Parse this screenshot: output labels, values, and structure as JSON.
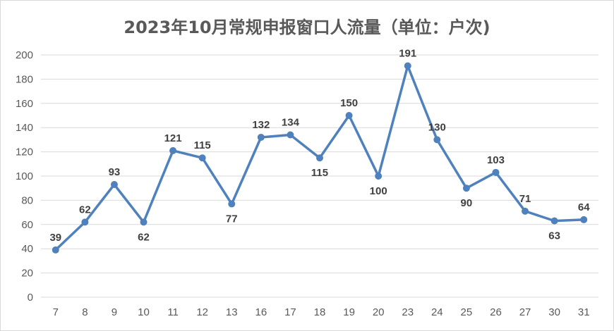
{
  "chart_data": {
    "type": "line",
    "title": "2023年10月常规申报窗口人流量（单位：户次)",
    "categories": [
      "7",
      "8",
      "9",
      "10",
      "11",
      "12",
      "13",
      "16",
      "17",
      "18",
      "19",
      "20",
      "23",
      "24",
      "25",
      "26",
      "27",
      "30",
      "31"
    ],
    "series": [
      {
        "values": [
          39,
          62,
          93,
          62,
          121,
          115,
          77,
          132,
          134,
          115,
          150,
          100,
          191,
          130,
          90,
          103,
          71,
          63,
          64
        ]
      }
    ],
    "ylim": [
      0,
      200
    ],
    "yticks": [
      0,
      20,
      40,
      60,
      80,
      100,
      120,
      140,
      160,
      180,
      200
    ],
    "grid": true,
    "data_labels": true,
    "colors": {
      "line": "#4f81bd",
      "grid": "#d9d9d9",
      "axis_text": "#595959",
      "label_text": "#404040"
    }
  }
}
